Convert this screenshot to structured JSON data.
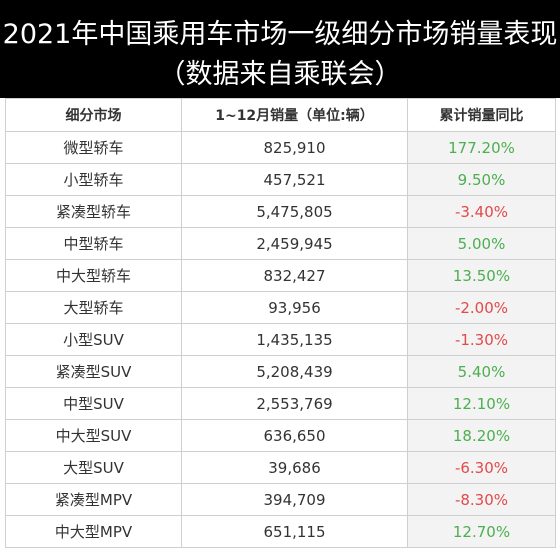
{
  "header": {
    "title": "2021年中国乘用车市场一级细分市场销量表现",
    "subtitle": "（数据来自乘联会）"
  },
  "table": {
    "columns": [
      "细分市场",
      "1~12月销量（单位:辆）",
      "累计销量同比"
    ],
    "rows": [
      {
        "segment": "微型轿车",
        "sales": "825,910",
        "yoy": "177.20%",
        "trend": "up"
      },
      {
        "segment": "小型轿车",
        "sales": "457,521",
        "yoy": "9.50%",
        "trend": "up"
      },
      {
        "segment": "紧凑型轿车",
        "sales": "5,475,805",
        "yoy": "-3.40%",
        "trend": "down"
      },
      {
        "segment": "中型轿车",
        "sales": "2,459,945",
        "yoy": "5.00%",
        "trend": "up"
      },
      {
        "segment": "中大型轿车",
        "sales": "832,427",
        "yoy": "13.50%",
        "trend": "up"
      },
      {
        "segment": "大型轿车",
        "sales": "93,956",
        "yoy": "-2.00%",
        "trend": "down"
      },
      {
        "segment": "小型SUV",
        "sales": "1,435,135",
        "yoy": "-1.30%",
        "trend": "down"
      },
      {
        "segment": "紧凑型SUV",
        "sales": "5,208,439",
        "yoy": "5.40%",
        "trend": "up"
      },
      {
        "segment": "中型SUV",
        "sales": "2,553,769",
        "yoy": "12.10%",
        "trend": "up"
      },
      {
        "segment": "中大型SUV",
        "sales": "636,650",
        "yoy": "18.20%",
        "trend": "up"
      },
      {
        "segment": "大型SUV",
        "sales": "39,686",
        "yoy": "-6.30%",
        "trend": "down"
      },
      {
        "segment": "紧凑型MPV",
        "sales": "394,709",
        "yoy": "-8.30%",
        "trend": "down"
      },
      {
        "segment": "中大型MPV",
        "sales": "651,115",
        "yoy": "12.70%",
        "trend": "up"
      }
    ]
  },
  "colors": {
    "banner_bg": "#000000",
    "positive": "#4caf50",
    "negative": "#e24a4a"
  }
}
